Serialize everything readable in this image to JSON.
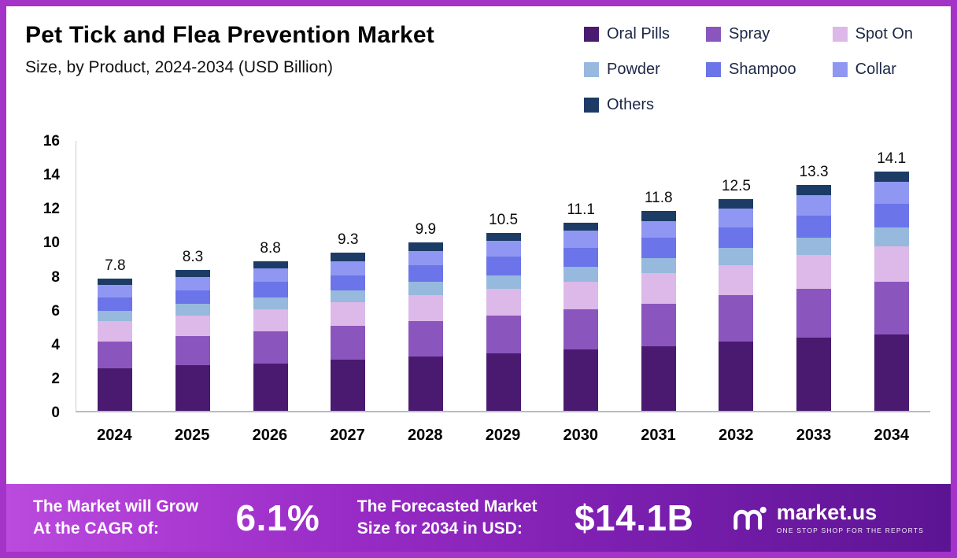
{
  "header": {
    "title": "Pet Tick and Flea Prevention Market",
    "subtitle": "Size, by Product, 2024-2034 (USD Billion)"
  },
  "legend": [
    {
      "label": "Oral Pills",
      "color": "#4a1a70"
    },
    {
      "label": "Spray",
      "color": "#8b55be"
    },
    {
      "label": "Spot On",
      "color": "#dcb9e8"
    },
    {
      "label": "Powder",
      "color": "#96b9dd"
    },
    {
      "label": "Shampoo",
      "color": "#6b74e8"
    },
    {
      "label": "Collar",
      "color": "#8f97f2"
    },
    {
      "label": "Others",
      "color": "#1c3c66"
    }
  ],
  "chart_data": {
    "type": "bar",
    "stacked": true,
    "title": "Pet Tick and Flea Prevention Market Size, by Product, 2024-2034 (USD Billion)",
    "categories": [
      "2024",
      "2025",
      "2026",
      "2027",
      "2028",
      "2029",
      "2030",
      "2031",
      "2032",
      "2033",
      "2034"
    ],
    "series": [
      {
        "name": "Oral Pills",
        "color": "#4a1a70",
        "values": [
          2.5,
          2.7,
          2.8,
          3.0,
          3.2,
          3.4,
          3.6,
          3.8,
          4.1,
          4.3,
          4.5
        ]
      },
      {
        "name": "Spray",
        "color": "#8b55be",
        "values": [
          1.6,
          1.7,
          1.9,
          2.0,
          2.1,
          2.2,
          2.4,
          2.5,
          2.7,
          2.9,
          3.1
        ]
      },
      {
        "name": "Spot On",
        "color": "#dcb9e8",
        "values": [
          1.2,
          1.2,
          1.3,
          1.4,
          1.5,
          1.6,
          1.6,
          1.8,
          1.8,
          2.0,
          2.1
        ]
      },
      {
        "name": "Powder",
        "color": "#96b9dd",
        "values": [
          0.6,
          0.7,
          0.7,
          0.7,
          0.8,
          0.8,
          0.9,
          0.9,
          1.0,
          1.0,
          1.1
        ]
      },
      {
        "name": "Shampoo",
        "color": "#6b74e8",
        "values": [
          0.8,
          0.8,
          0.9,
          0.9,
          1.0,
          1.1,
          1.1,
          1.2,
          1.2,
          1.3,
          1.4
        ]
      },
      {
        "name": "Collar",
        "color": "#8f97f2",
        "values": [
          0.7,
          0.8,
          0.8,
          0.8,
          0.8,
          0.9,
          1.0,
          1.0,
          1.1,
          1.2,
          1.3
        ]
      },
      {
        "name": "Others",
        "color": "#1c3c66",
        "values": [
          0.4,
          0.4,
          0.4,
          0.5,
          0.5,
          0.5,
          0.5,
          0.6,
          0.6,
          0.6,
          0.6
        ]
      }
    ],
    "totals": [
      7.8,
      8.3,
      8.8,
      9.3,
      9.9,
      10.5,
      11.1,
      11.8,
      12.5,
      13.3,
      14.1
    ],
    "xlabel": "",
    "ylabel": "",
    "ylim": [
      0,
      16
    ],
    "yticks": [
      0,
      2,
      4,
      6,
      8,
      10,
      12,
      14,
      16
    ],
    "grid": false,
    "legend_position": "top-right"
  },
  "banner": {
    "cagr_label_line1": "The Market will Grow",
    "cagr_label_line2": "At the CAGR of:",
    "cagr_value": "6.1%",
    "forecast_label_line1": "The Forecasted Market",
    "forecast_label_line2": "Size for 2034 in USD:",
    "forecast_value": "$14.1B",
    "brand_name": "market.us",
    "brand_tagline": "ONE STOP SHOP FOR THE REPORTS"
  }
}
